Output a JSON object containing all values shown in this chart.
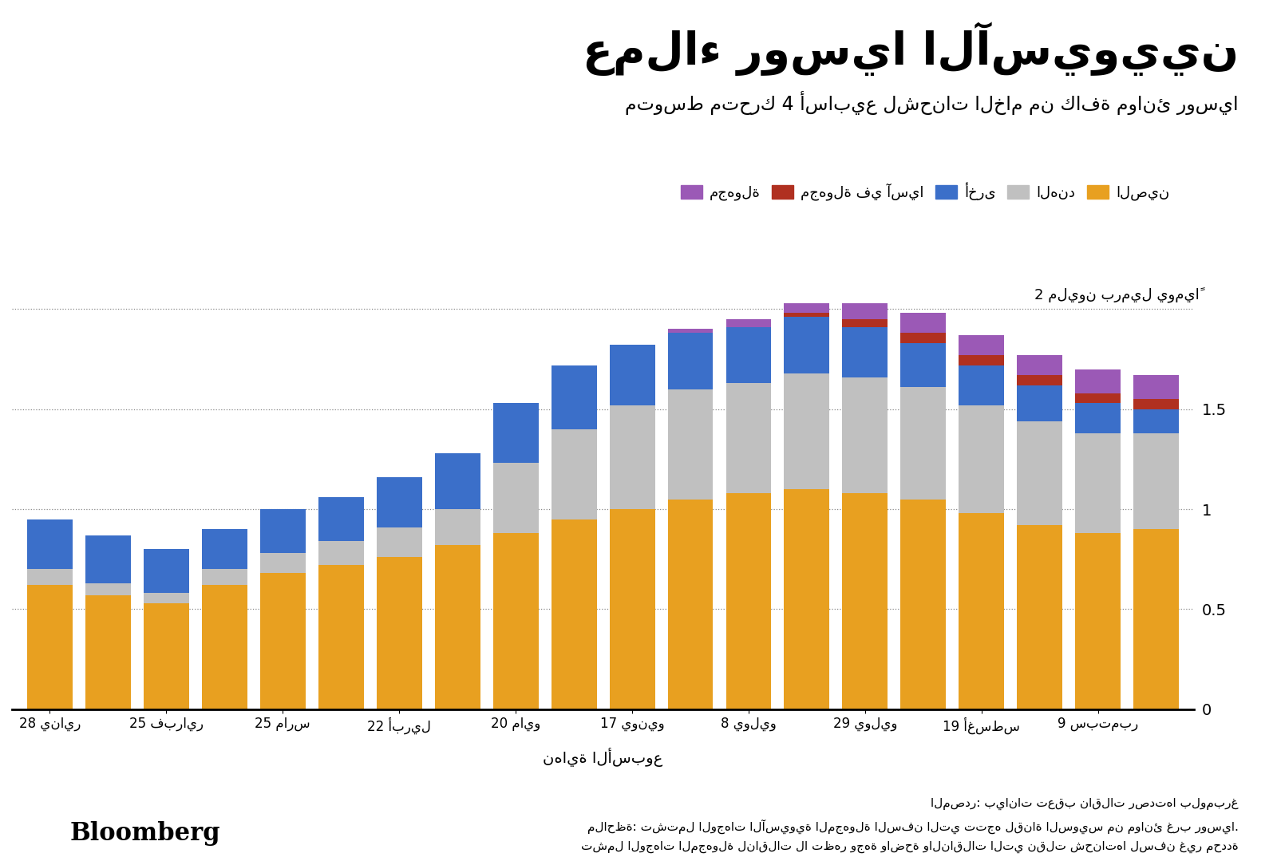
{
  "title": "عملاء روسيا الآسيويين",
  "subtitle": "متوسط متحرك 4 أسابيع لشحنات الخام من كافة موانئ روسيا",
  "ylabel": "2 مليون برميل يومياً",
  "xlabel": "نهاية الأسبوع",
  "source_text": "المصدر: بيانات تعقب ناقلات رصدتها بلومبرغ",
  "note1": "ملاحظة: تشتمل الوجهات الآسيوية المجهولة السفن التي تتجه لقناة السويس من موانئ غرب روسيا.",
  "note2": "تشمل الوجهات المجهولة لناقلات لا تظهر وجهة واضحة والناقلات التي نقلت شحناتها لسفن غير محددة",
  "legend_labels": [
    "الصين",
    "الهند",
    "أخرى",
    "مجهولة في آسيا",
    "مجهولة"
  ],
  "colors": {
    "china": "#E8A020",
    "india": "#C0C0C0",
    "other": "#3B6FC9",
    "unknown_asia": "#B03020",
    "unknown": "#9B59B6"
  },
  "background_color": "#FFFFFF",
  "yticks": [
    0,
    0.5,
    1.0,
    1.5,
    2.0
  ],
  "ytick_labels": [
    "0",
    "0.5",
    "1",
    "1.5",
    "2"
  ],
  "named_ticks": {
    "0": "28 يناير",
    "2": "25 فبراير",
    "4": "25 مارس",
    "6": "22 أبريل",
    "8": "20 مايو",
    "10": "17 يونيو",
    "12": "8 يوليو",
    "14": "29 يوليو",
    "16": "19 أغسطس",
    "18": "9 سبتمبر"
  },
  "china": [
    0.62,
    0.57,
    0.53,
    0.62,
    0.68,
    0.72,
    0.76,
    0.82,
    0.88,
    0.95,
    1.0,
    1.05,
    1.08,
    1.1,
    1.08,
    1.05,
    0.98,
    0.92,
    0.88,
    0.9
  ],
  "india": [
    0.08,
    0.06,
    0.05,
    0.08,
    0.1,
    0.12,
    0.15,
    0.18,
    0.35,
    0.45,
    0.52,
    0.55,
    0.55,
    0.58,
    0.58,
    0.56,
    0.54,
    0.52,
    0.5,
    0.48
  ],
  "other": [
    0.25,
    0.24,
    0.22,
    0.2,
    0.22,
    0.22,
    0.25,
    0.28,
    0.3,
    0.32,
    0.3,
    0.28,
    0.28,
    0.28,
    0.25,
    0.22,
    0.2,
    0.18,
    0.15,
    0.12
  ],
  "unknown_asia": [
    0.0,
    0.0,
    0.0,
    0.0,
    0.0,
    0.0,
    0.0,
    0.0,
    0.0,
    0.0,
    0.0,
    0.0,
    0.0,
    0.02,
    0.04,
    0.05,
    0.05,
    0.05,
    0.05,
    0.05
  ],
  "unknown": [
    0.0,
    0.0,
    0.0,
    0.0,
    0.0,
    0.0,
    0.0,
    0.0,
    0.0,
    0.0,
    0.0,
    0.02,
    0.04,
    0.05,
    0.08,
    0.1,
    0.1,
    0.1,
    0.12,
    0.12
  ]
}
